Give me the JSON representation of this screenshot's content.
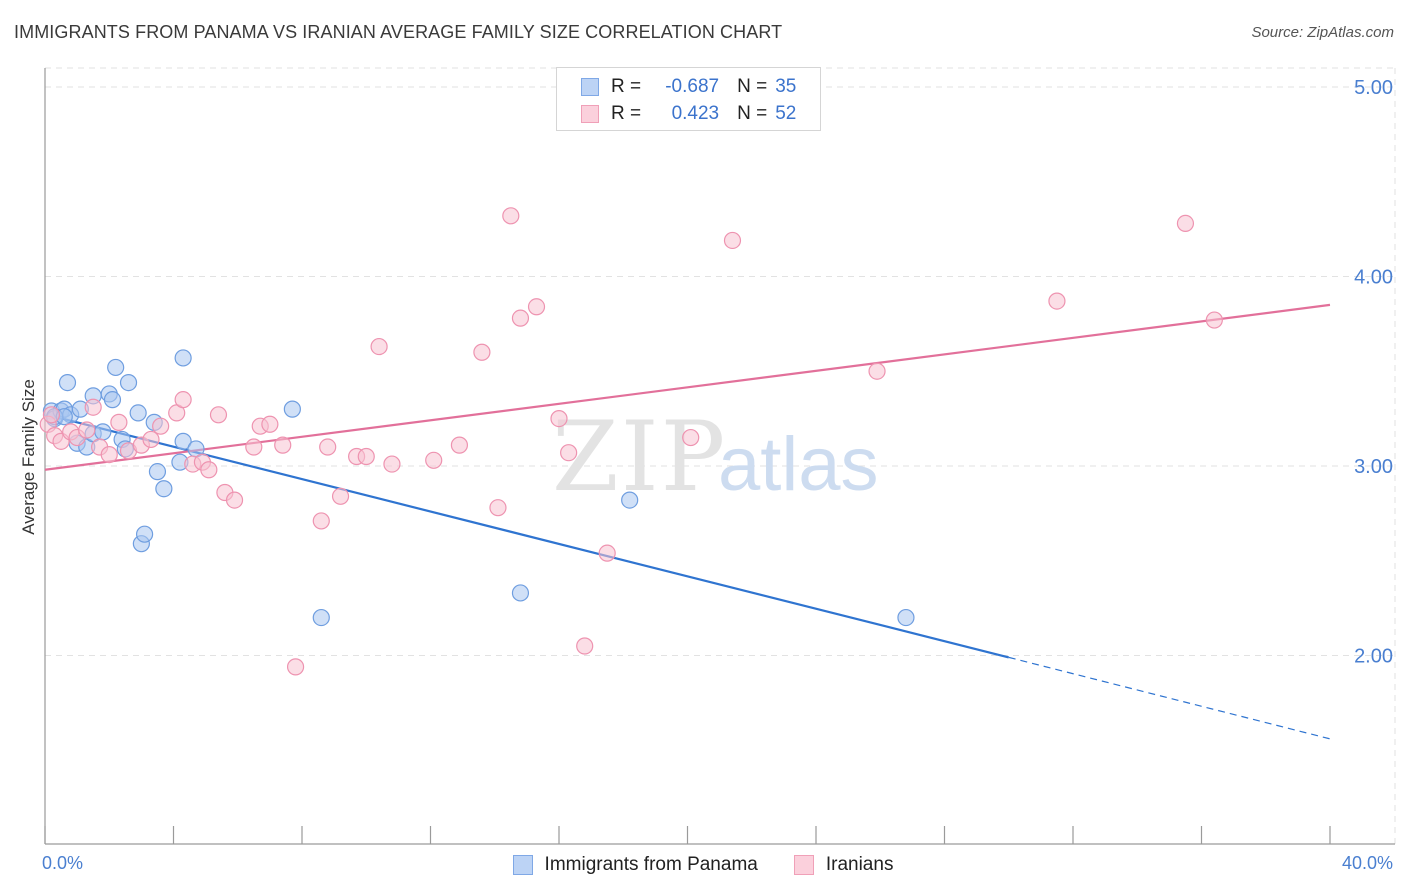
{
  "title": "IMMIGRANTS FROM PANAMA VS IRANIAN AVERAGE FAMILY SIZE CORRELATION CHART",
  "source": "Source: ZipAtlas.com",
  "legend": {
    "r_label": "R =",
    "n_label": "N =",
    "rows": [
      {
        "r": "-0.687",
        "n": "35",
        "fill": "#bcd3f5",
        "stroke": "#7fa8e6"
      },
      {
        "r": "0.423",
        "n": "52",
        "fill": "#fbd0dc",
        "stroke": "#f0a0b8"
      }
    ]
  },
  "watermark": {
    "zip": "ZIP",
    "atlas": "atlas"
  },
  "colors": {
    "panama_fill": "#a9c6f0",
    "panama_stroke": "#6f9ee0",
    "panama_line": "#2f74d0",
    "iran_fill": "#f8c2d2",
    "iran_stroke": "#ee93b0",
    "iran_line": "#e2709a",
    "grid": "#e2e2e2",
    "axis": "#9a9a9a",
    "tick_text": "#4a7fd0"
  },
  "chart_data": {
    "type": "scatter",
    "title": "IMMIGRANTS FROM PANAMA VS IRANIAN AVERAGE FAMILY SIZE CORRELATION CHART",
    "xlabel": "",
    "ylabel": "Average Family Size",
    "xlim": [
      0,
      40
    ],
    "ylim": [
      1.0,
      5.1
    ],
    "x_tick_labels": [
      "0.0%",
      "40.0%"
    ],
    "y_ticks": [
      2.0,
      3.0,
      4.0,
      5.0
    ],
    "y_tick_labels": [
      "2.00",
      "3.00",
      "4.00",
      "5.00"
    ],
    "grid": true,
    "series": [
      {
        "name": "Immigrants from Panama",
        "stats": {
          "R": -0.687,
          "N": 35
        },
        "points": [
          [
            0.2,
            3.29
          ],
          [
            0.3,
            3.25
          ],
          [
            0.5,
            3.29
          ],
          [
            0.6,
            3.3
          ],
          [
            0.7,
            3.44
          ],
          [
            0.8,
            3.27
          ],
          [
            1.0,
            3.12
          ],
          [
            1.1,
            3.3
          ],
          [
            1.3,
            3.1
          ],
          [
            1.5,
            3.17
          ],
          [
            1.5,
            3.37
          ],
          [
            1.8,
            3.18
          ],
          [
            2.0,
            3.38
          ],
          [
            2.1,
            3.35
          ],
          [
            2.2,
            3.52
          ],
          [
            2.4,
            3.14
          ],
          [
            2.5,
            3.09
          ],
          [
            2.6,
            3.44
          ],
          [
            2.9,
            3.28
          ],
          [
            3.0,
            2.59
          ],
          [
            3.1,
            2.64
          ],
          [
            3.4,
            3.23
          ],
          [
            3.5,
            2.97
          ],
          [
            3.7,
            2.88
          ],
          [
            4.2,
            3.02
          ],
          [
            4.3,
            3.13
          ],
          [
            4.3,
            3.57
          ],
          [
            4.7,
            3.09
          ],
          [
            7.7,
            3.3
          ],
          [
            8.6,
            2.2
          ],
          [
            14.8,
            2.33
          ],
          [
            18.2,
            2.82
          ],
          [
            26.8,
            2.2
          ],
          [
            0.3,
            3.26
          ],
          [
            0.6,
            3.26
          ]
        ],
        "trend": {
          "x0": 0.3,
          "y0": 3.26,
          "x1": 30.0,
          "y1": 1.99,
          "dashed_to_x": 40.0,
          "dashed_to_y": 1.56
        }
      },
      {
        "name": "Iranians",
        "stats": {
          "R": 0.423,
          "N": 52
        },
        "points": [
          [
            0.1,
            3.22
          ],
          [
            0.3,
            3.16
          ],
          [
            0.5,
            3.13
          ],
          [
            0.8,
            3.18
          ],
          [
            1.0,
            3.15
          ],
          [
            1.3,
            3.19
          ],
          [
            1.5,
            3.31
          ],
          [
            1.7,
            3.1
          ],
          [
            2.0,
            3.06
          ],
          [
            2.3,
            3.23
          ],
          [
            2.6,
            3.08
          ],
          [
            3.0,
            3.11
          ],
          [
            3.3,
            3.14
          ],
          [
            3.6,
            3.21
          ],
          [
            4.1,
            3.28
          ],
          [
            4.3,
            3.35
          ],
          [
            4.6,
            3.01
          ],
          [
            4.9,
            3.02
          ],
          [
            5.1,
            2.98
          ],
          [
            5.4,
            3.27
          ],
          [
            5.6,
            2.86
          ],
          [
            5.9,
            2.82
          ],
          [
            6.5,
            3.1
          ],
          [
            6.7,
            3.21
          ],
          [
            7.0,
            3.22
          ],
          [
            7.4,
            3.11
          ],
          [
            7.8,
            1.94
          ],
          [
            8.6,
            2.71
          ],
          [
            8.8,
            3.1
          ],
          [
            9.2,
            2.84
          ],
          [
            9.7,
            3.05
          ],
          [
            10.0,
            3.05
          ],
          [
            10.4,
            3.63
          ],
          [
            10.8,
            3.01
          ],
          [
            12.1,
            3.03
          ],
          [
            12.9,
            3.11
          ],
          [
            13.6,
            3.6
          ],
          [
            14.1,
            2.78
          ],
          [
            14.5,
            4.32
          ],
          [
            14.8,
            3.78
          ],
          [
            15.3,
            3.84
          ],
          [
            16.0,
            3.25
          ],
          [
            16.3,
            3.07
          ],
          [
            16.8,
            2.05
          ],
          [
            17.5,
            2.54
          ],
          [
            20.1,
            3.15
          ],
          [
            21.4,
            4.19
          ],
          [
            25.9,
            3.5
          ],
          [
            31.5,
            3.87
          ],
          [
            35.5,
            4.28
          ],
          [
            36.4,
            3.77
          ],
          [
            0.2,
            3.27
          ]
        ],
        "trend": {
          "x0": 0.0,
          "y0": 2.98,
          "x1": 40.0,
          "y1": 3.85
        }
      }
    ]
  },
  "bottom_legend": [
    {
      "label": "Immigrants from Panama",
      "fill": "#bcd3f5",
      "stroke": "#7fa8e6"
    },
    {
      "label": "Iranians",
      "fill": "#fbd0dc",
      "stroke": "#f0a0b8"
    }
  ]
}
